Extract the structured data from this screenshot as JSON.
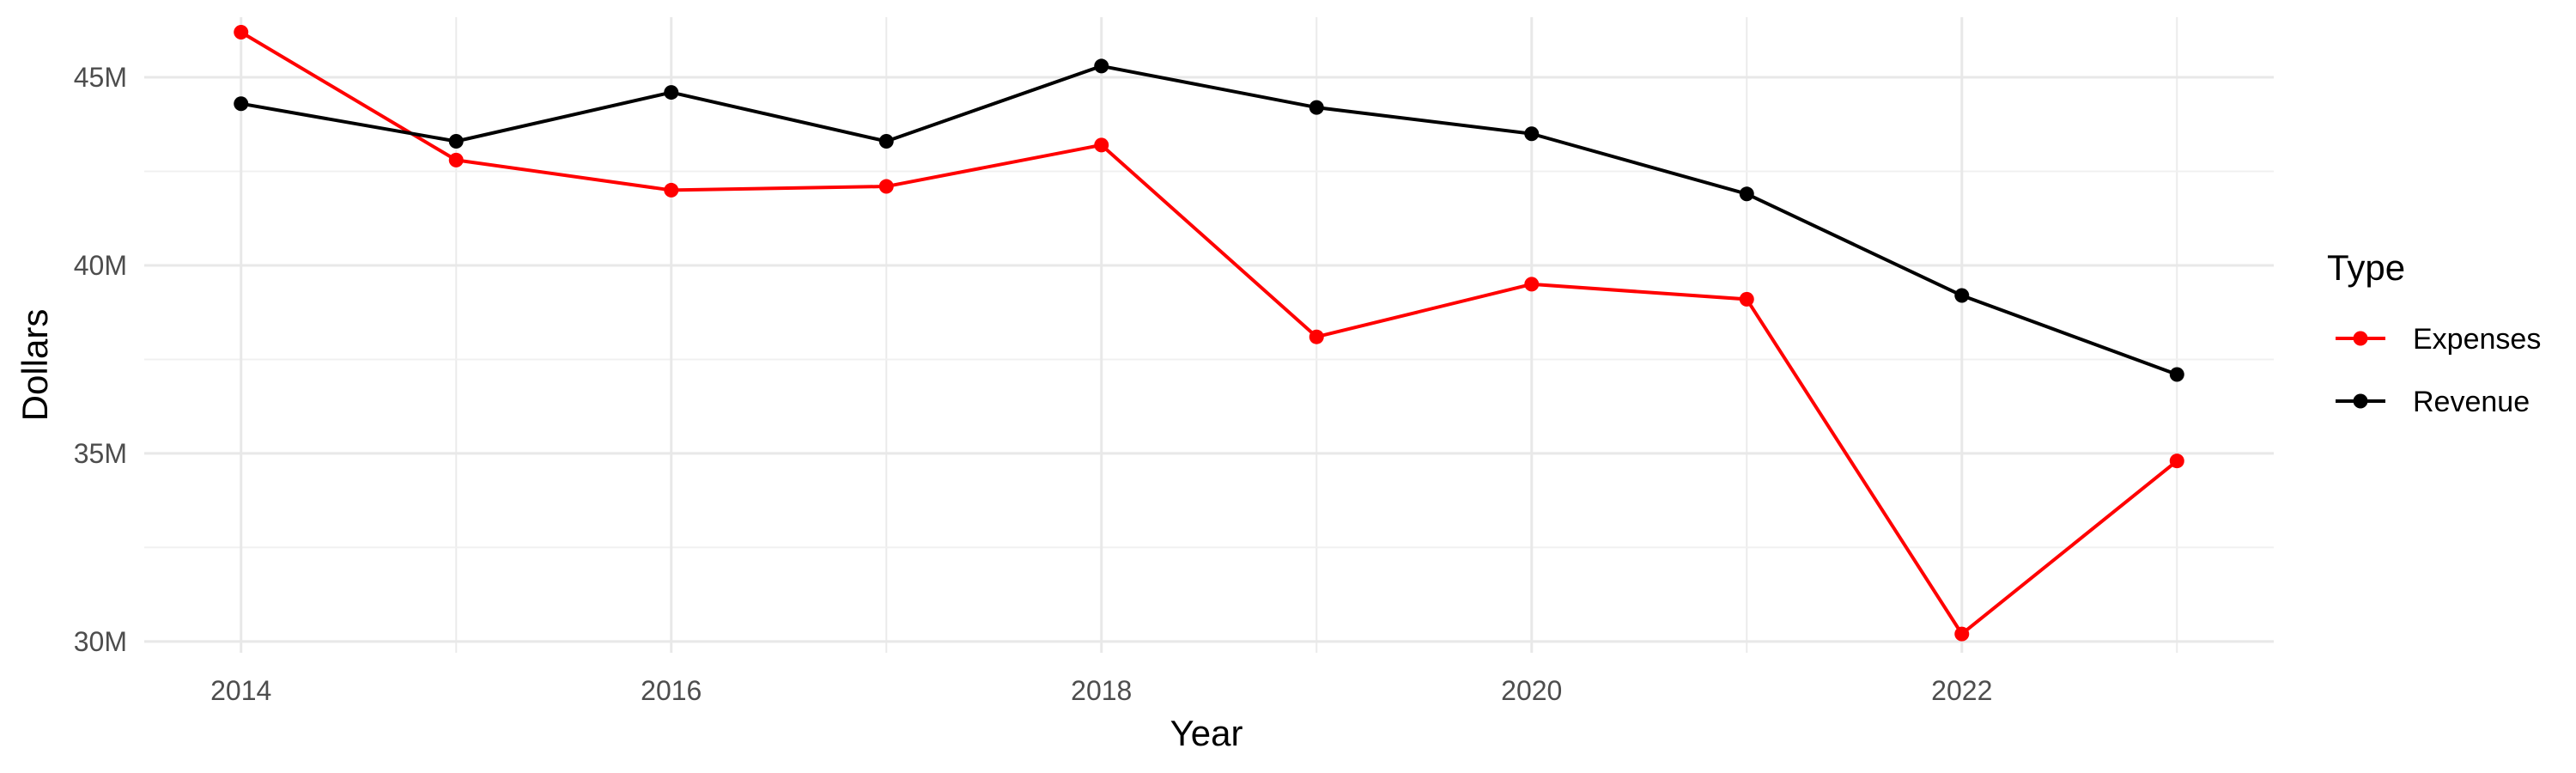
{
  "chart_data": {
    "type": "line",
    "xlabel": "Year",
    "ylabel": "Dollars",
    "x": [
      2014,
      2015,
      2016,
      2017,
      2018,
      2019,
      2020,
      2021,
      2022,
      2023
    ],
    "x_ticks": [
      2014,
      2016,
      2018,
      2020,
      2022
    ],
    "x_tick_labels": [
      "2014",
      "2016",
      "2018",
      "2020",
      "2022"
    ],
    "xlim": [
      2013.55,
      2023.45
    ],
    "y_ticks": [
      30000000,
      35000000,
      40000000,
      45000000
    ],
    "y_tick_labels": [
      "30M",
      "35M",
      "40M",
      "45M"
    ],
    "ylim": [
      29700000,
      46600000
    ],
    "grid": true,
    "legend": {
      "title": "Type",
      "position": "right"
    },
    "series": [
      {
        "name": "Expenses",
        "color": "#ff0000",
        "values": [
          46200000,
          42800000,
          42000000,
          42100000,
          43200000,
          38100000,
          39500000,
          39100000,
          30200000,
          34800000
        ]
      },
      {
        "name": "Revenue",
        "color": "#000000",
        "values": [
          44300000,
          43300000,
          44600000,
          43300000,
          45300000,
          44200000,
          43500000,
          41900000,
          39200000,
          37100000
        ]
      }
    ]
  }
}
